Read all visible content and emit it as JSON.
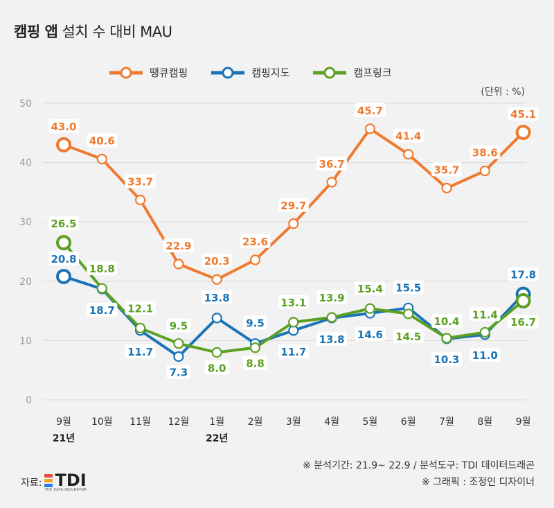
{
  "title_bold": "캠핑 앱",
  "title_rest": "설치 수 대비 MAU",
  "unit": "(단위 : %)",
  "source": {
    "label": "자료:",
    "logo_text": "TDI",
    "logo_sub": "THE DATA INCUBATOR"
  },
  "notes": [
    "※ 분석기간: 21.9~ 22.9 / 분석도구: TDI 데이터드래곤",
    "※ 그래픽 : 조정인 디자이너"
  ],
  "colors": {
    "orange": "#ef7a2f",
    "blue": "#1a73b6",
    "green": "#5aa022",
    "grid": "#d9d9d9",
    "axis_text": "#999999"
  },
  "chart_data": {
    "type": "line",
    "categories": [
      "9월",
      "10월",
      "11월",
      "12월",
      "1월",
      "2월",
      "3월",
      "4월",
      "5월",
      "6월",
      "7월",
      "8월",
      "9월"
    ],
    "year_labels": [
      "21년",
      "",
      "",
      "",
      "22년",
      "",
      "",
      "",
      "",
      "",
      "",
      "",
      ""
    ],
    "ylim": [
      0,
      50
    ],
    "yticks": [
      0,
      10,
      20,
      30,
      40,
      50
    ],
    "grid": true,
    "legend_position": "top",
    "series": [
      {
        "name": "땡큐캠핑",
        "color": "#ef7a2f",
        "values": [
          43.0,
          40.6,
          33.7,
          22.9,
          20.3,
          23.6,
          29.7,
          36.7,
          45.7,
          41.4,
          35.7,
          38.6,
          45.1
        ],
        "labels": [
          "43.0",
          "40.6",
          "33.7",
          "22.9",
          "20.3",
          "23.6",
          "29.7",
          "36.7",
          "45.7",
          "41.4",
          "35.7",
          "38.6",
          "45.1"
        ]
      },
      {
        "name": "캠핑지도",
        "color": "#1a73b6",
        "values": [
          20.8,
          18.7,
          11.7,
          7.3,
          13.8,
          9.5,
          11.7,
          13.8,
          14.6,
          15.5,
          10.3,
          11.0,
          17.8
        ],
        "labels": [
          "20.8",
          "18.7",
          "11.7",
          "7.3",
          "13.8",
          "9.5",
          "11.7",
          "13.8",
          "14.6",
          "15.5",
          "10.3",
          "11.0",
          "17.8"
        ]
      },
      {
        "name": "캠프링크",
        "color": "#5aa022",
        "values": [
          26.5,
          18.8,
          12.1,
          9.5,
          8.0,
          8.8,
          13.1,
          13.9,
          15.4,
          14.5,
          10.4,
          11.4,
          16.7
        ],
        "labels": [
          "26.5",
          "18.8",
          "12.1",
          "9.5",
          "8.0",
          "8.8",
          "13.1",
          "13.9",
          "15.4",
          "14.5",
          "10.4",
          "11.4",
          "16.7"
        ]
      }
    ]
  }
}
